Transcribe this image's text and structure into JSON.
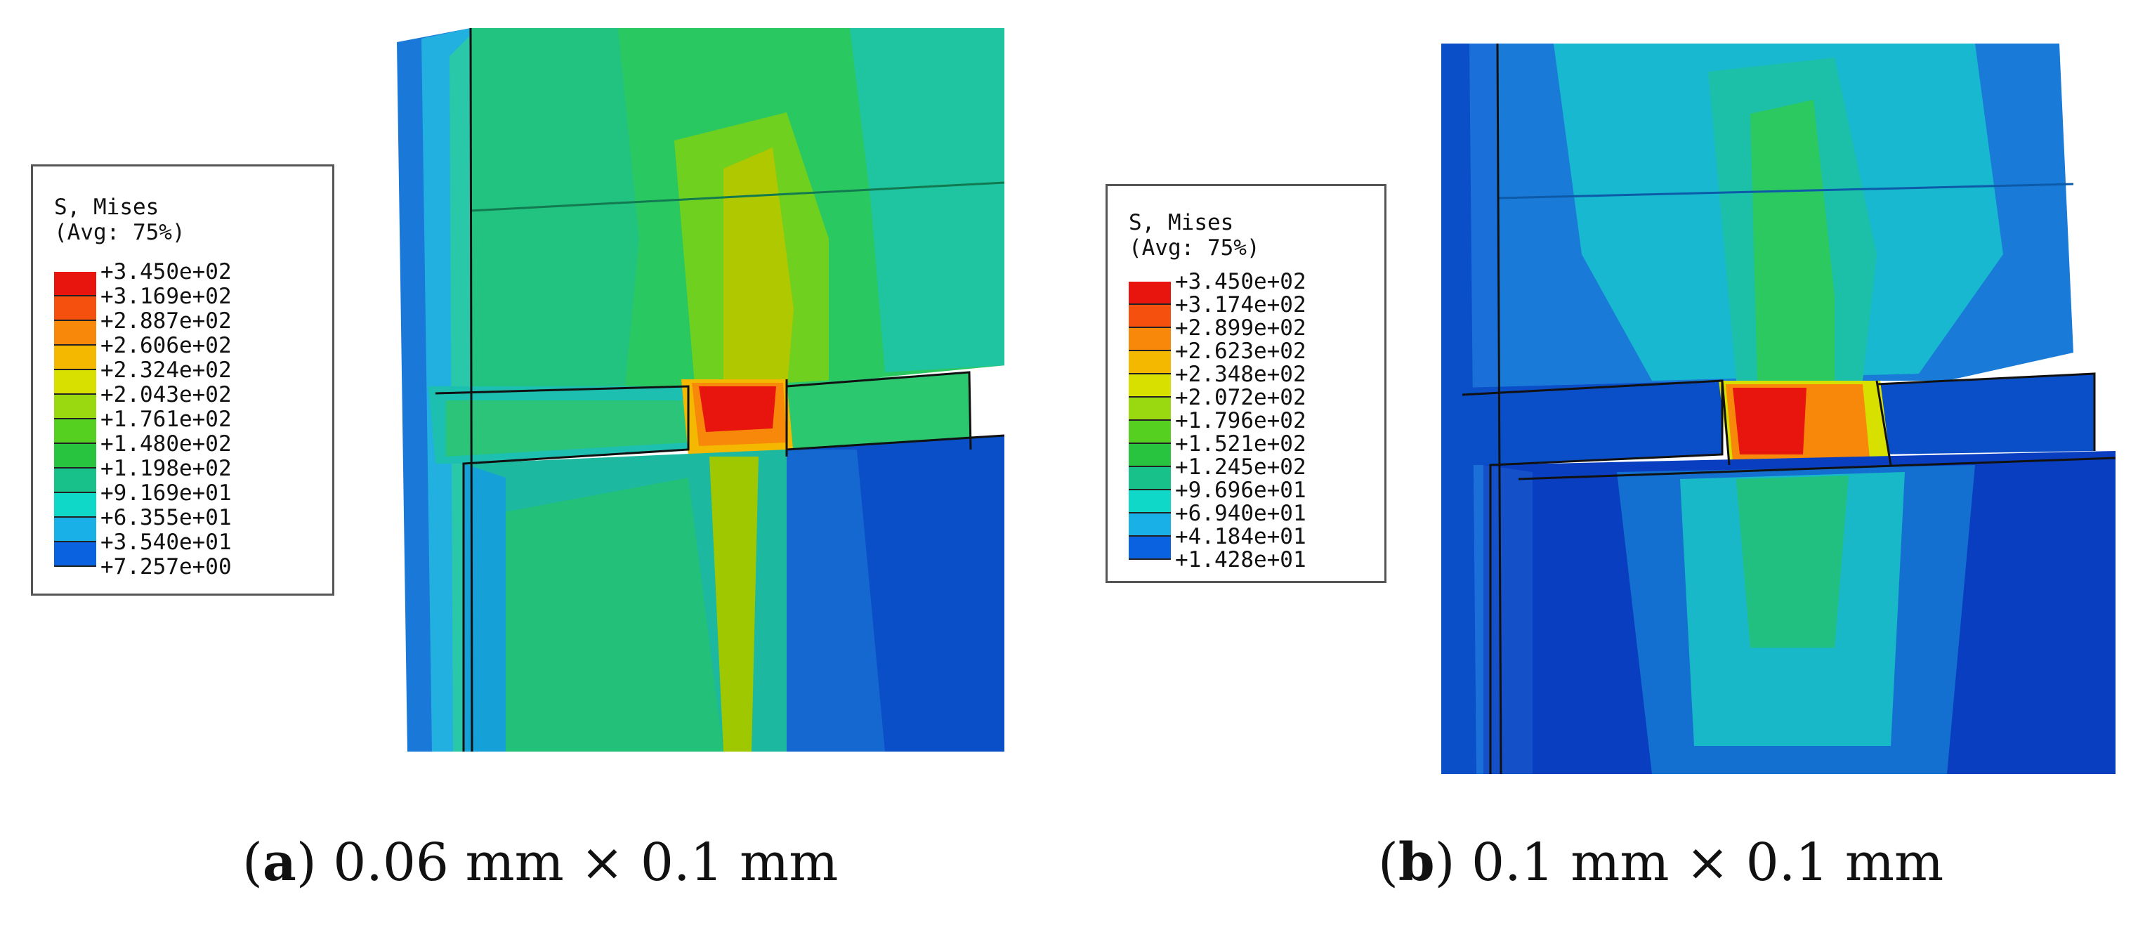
{
  "panels": [
    {
      "id": "a",
      "legend": {
        "title_line1": "S, Mises",
        "title_line2": "(Avg: 75%)",
        "values": [
          "+3.450e+02",
          "+3.169e+02",
          "+2.887e+02",
          "+2.606e+02",
          "+2.324e+02",
          "+2.043e+02",
          "+1.761e+02",
          "+1.480e+02",
          "+1.198e+02",
          "+9.169e+01",
          "+6.355e+01",
          "+3.540e+01",
          "+7.257e+00"
        ]
      },
      "caption": {
        "letter": "a",
        "text": " 0.06 mm × 0.1 mm"
      }
    },
    {
      "id": "b",
      "legend": {
        "title_line1": "S, Mises",
        "title_line2": "(Avg: 75%)",
        "values": [
          "+3.450e+02",
          "+3.174e+02",
          "+2.899e+02",
          "+2.623e+02",
          "+2.348e+02",
          "+2.072e+02",
          "+1.796e+02",
          "+1.521e+02",
          "+1.245e+02",
          "+9.696e+01",
          "+6.940e+01",
          "+4.184e+01",
          "+1.428e+01"
        ]
      },
      "caption": {
        "letter": "b",
        "text": " 0.1 mm × 0.1 mm"
      }
    }
  ],
  "colors": {
    "contour_scale": [
      "#e8140e",
      "#f5500e",
      "#f7880a",
      "#f5b800",
      "#d8e000",
      "#9ad80f",
      "#55cf20",
      "#28c33f",
      "#18c08a",
      "#10d8c8",
      "#19b0e8",
      "#0b62e0",
      "#0a10e6"
    ],
    "background": "#ffffff"
  }
}
